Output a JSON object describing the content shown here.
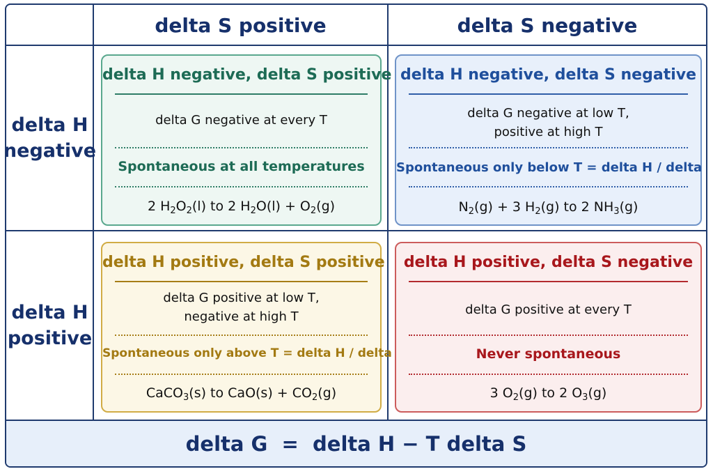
{
  "columns": {
    "s_positive": "delta S positive",
    "s_negative": "delta S negative"
  },
  "rows": {
    "h_negative": [
      "delta H",
      "negative"
    ],
    "h_positive": [
      "delta H",
      "positive"
    ]
  },
  "cells": {
    "hneg_spos": {
      "title": "delta H negative, delta S positive",
      "desc": [
        "delta G negative at every T"
      ],
      "verdict": "Spontaneous at all temperatures",
      "equation": [
        "2 H",
        "2",
        "O",
        "2",
        "(l) to 2 H",
        "2",
        "O(l) + O",
        "2",
        "(g)"
      ]
    },
    "hneg_sneg": {
      "title": "delta H negative, delta S negative",
      "desc": [
        "delta G negative at low T,",
        "positive at high T"
      ],
      "verdict": "Spontaneous only below T = delta H / delta S",
      "equation": [
        "N",
        "2",
        "(g) + 3 H",
        "2",
        "(g) to 2 NH",
        "3",
        "(g)"
      ]
    },
    "hpos_spos": {
      "title": "delta H positive, delta S positive",
      "desc": [
        "delta G positive at low T,",
        "negative at high T"
      ],
      "verdict": "Spontaneous only above T = delta H / delta S",
      "equation": [
        "CaCO",
        "3",
        "(s) to CaO(s) + CO",
        "2",
        "(g)"
      ]
    },
    "hpos_sneg": {
      "title": "delta H positive, delta S negative",
      "desc": [
        "delta G positive at every T"
      ],
      "verdict": "Never spontaneous",
      "equation": [
        "3 O",
        "2",
        "(g) to 2 O",
        "3",
        "(g)"
      ]
    }
  },
  "footer": {
    "formula": "delta G  =  delta H − T delta S"
  },
  "colors": {
    "frame": "#1f3a6e",
    "green": "#1d6b55",
    "blue": "#1f4f9c",
    "gold": "#a37a12",
    "red": "#a8171c"
  }
}
